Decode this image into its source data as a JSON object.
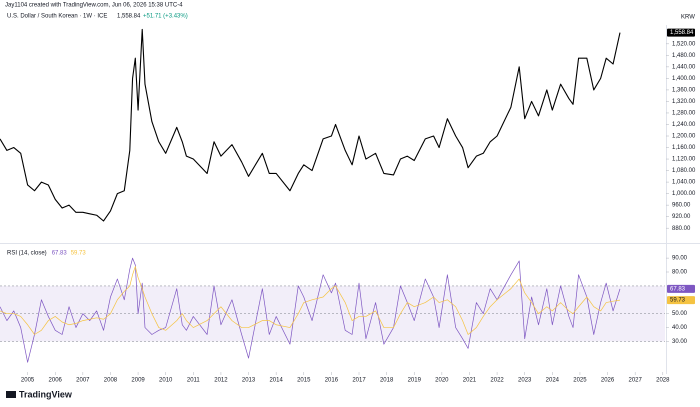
{
  "header": {
    "watermark": "Jay1104 created with TradingView.com, Jun 06, 2026 15:38 UTC-4",
    "symbol": "U.S. Dollar / South Korean · 1W · ICE",
    "last": "1,558.84",
    "change": "+51.71 (+3.43%)",
    "currency": "KRW",
    "brand": "TradingView"
  },
  "chart_data": [
    {
      "type": "line",
      "last_label": "1,558.84",
      "x": [
        2004.0,
        2004.25,
        2004.5,
        2004.75,
        2005.0,
        2005.25,
        2005.5,
        2005.75,
        2006.0,
        2006.25,
        2006.5,
        2006.75,
        2007.0,
        2007.25,
        2007.5,
        2007.75,
        2008.0,
        2008.25,
        2008.5,
        2008.7,
        2008.8,
        2008.9,
        2009.0,
        2009.15,
        2009.25,
        2009.5,
        2009.75,
        2010.0,
        2010.4,
        2010.6,
        2010.75,
        2011.0,
        2011.5,
        2011.75,
        2012.0,
        2012.4,
        2012.75,
        2013.0,
        2013.5,
        2013.75,
        2014.0,
        2014.5,
        2014.8,
        2015.0,
        2015.3,
        2015.7,
        2016.0,
        2016.15,
        2016.5,
        2016.75,
        2017.0,
        2017.25,
        2017.6,
        2017.9,
        2018.25,
        2018.5,
        2018.75,
        2019.0,
        2019.4,
        2019.7,
        2019.9,
        2020.2,
        2020.5,
        2020.75,
        2020.95,
        2021.25,
        2021.5,
        2021.75,
        2022.0,
        2022.5,
        2022.8,
        2023.0,
        2023.25,
        2023.5,
        2023.8,
        2024.0,
        2024.3,
        2024.6,
        2024.75,
        2024.95,
        2025.25,
        2025.5,
        2025.75,
        2025.95,
        2026.2,
        2026.45
      ],
      "series": [
        {
          "name": "U.S. Dollar / South Korean",
          "color": "#000000",
          "values": [
            1190,
            1150,
            1160,
            1140,
            1030,
            1010,
            1040,
            1030,
            980,
            950,
            960,
            935,
            935,
            930,
            925,
            905,
            940,
            1000,
            1010,
            1150,
            1400,
            1470,
            1290,
            1570,
            1380,
            1250,
            1180,
            1140,
            1230,
            1180,
            1130,
            1120,
            1070,
            1180,
            1130,
            1170,
            1110,
            1060,
            1140,
            1070,
            1070,
            1010,
            1070,
            1100,
            1080,
            1190,
            1200,
            1240,
            1150,
            1100,
            1200,
            1120,
            1140,
            1070,
            1065,
            1120,
            1130,
            1115,
            1190,
            1200,
            1160,
            1260,
            1200,
            1160,
            1090,
            1130,
            1140,
            1180,
            1200,
            1300,
            1440,
            1260,
            1320,
            1270,
            1360,
            1290,
            1380,
            1330,
            1310,
            1470,
            1470,
            1360,
            1400,
            1470,
            1450,
            1558.84
          ]
        }
      ],
      "xlim": [
        2004,
        2028.08
      ],
      "xticks": [
        2005,
        2006,
        2007,
        2008,
        2009,
        2010,
        2011,
        2012,
        2013,
        2014,
        2015,
        2016,
        2017,
        2018,
        2019,
        2020,
        2021,
        2022,
        2023,
        2024,
        2025,
        2026,
        2027,
        2028
      ],
      "ylim": [
        839,
        1568
      ],
      "yticks": [
        {
          "value": 880,
          "label": "880.00"
        },
        {
          "value": 920,
          "label": "920.00"
        },
        {
          "value": 960,
          "label": "960.00"
        },
        {
          "value": 1000,
          "label": "1,000.00"
        },
        {
          "value": 1040,
          "label": "1,040.00"
        },
        {
          "value": 1080,
          "label": "1,080.00"
        },
        {
          "value": 1120,
          "label": "1,120.00"
        },
        {
          "value": 1160,
          "label": "1,160.00"
        },
        {
          "value": 1200,
          "label": "1,200.00"
        },
        {
          "value": 1240,
          "label": "1,240.00"
        },
        {
          "value": 1280,
          "label": "1,280.00"
        },
        {
          "value": 1320,
          "label": "1,320.00"
        },
        {
          "value": 1360,
          "label": "1,360.00"
        },
        {
          "value": 1400,
          "label": "1,400.00"
        },
        {
          "value": 1440,
          "label": "1,440.00"
        },
        {
          "value": 1480,
          "label": "1,480.00"
        },
        {
          "value": 1520,
          "label": "1,520.00"
        }
      ]
    },
    {
      "type": "line",
      "title": "RSI (14, close)",
      "band": [
        30,
        70
      ],
      "midline": 50,
      "x": [
        2004.0,
        2004.25,
        2004.5,
        2004.75,
        2005.0,
        2005.25,
        2005.5,
        2005.75,
        2006.0,
        2006.25,
        2006.5,
        2006.75,
        2007.0,
        2007.25,
        2007.5,
        2007.75,
        2008.0,
        2008.25,
        2008.5,
        2008.7,
        2008.8,
        2008.9,
        2009.0,
        2009.15,
        2009.25,
        2009.5,
        2009.75,
        2010.0,
        2010.4,
        2010.6,
        2010.75,
        2011.0,
        2011.5,
        2011.75,
        2012.0,
        2012.4,
        2012.75,
        2013.0,
        2013.5,
        2013.75,
        2014.0,
        2014.5,
        2014.8,
        2015.0,
        2015.3,
        2015.7,
        2016.0,
        2016.15,
        2016.5,
        2016.75,
        2017.0,
        2017.25,
        2017.6,
        2017.9,
        2018.25,
        2018.5,
        2018.75,
        2019.0,
        2019.4,
        2019.7,
        2019.9,
        2020.2,
        2020.5,
        2020.75,
        2020.95,
        2021.25,
        2021.5,
        2021.75,
        2022.0,
        2022.5,
        2022.8,
        2023.0,
        2023.25,
        2023.5,
        2023.8,
        2024.0,
        2024.3,
        2024.6,
        2024.75,
        2024.95,
        2025.25,
        2025.5,
        2025.75,
        2025.95,
        2026.2,
        2026.45
      ],
      "series": [
        {
          "color": "#7e57c2",
          "values": [
            55,
            45,
            52,
            40,
            15,
            35,
            60,
            48,
            38,
            35,
            55,
            40,
            50,
            45,
            52,
            38,
            62,
            75,
            60,
            82,
            90,
            85,
            50,
            72,
            40,
            35,
            38,
            40,
            68,
            42,
            38,
            48,
            35,
            70,
            42,
            60,
            35,
            18,
            68,
            35,
            48,
            28,
            70,
            62,
            45,
            78,
            65,
            72,
            38,
            35,
            72,
            32,
            58,
            28,
            40,
            70,
            58,
            45,
            75,
            62,
            40,
            78,
            40,
            32,
            25,
            58,
            50,
            68,
            60,
            78,
            88,
            32,
            62,
            42,
            68,
            42,
            70,
            48,
            40,
            78,
            62,
            35,
            58,
            72,
            52,
            67.83
          ]
        },
        {
          "color": "#f5c342",
          "values": [
            52,
            50,
            50,
            48,
            42,
            35,
            38,
            45,
            48,
            44,
            42,
            43,
            45,
            46,
            47,
            46,
            50,
            60,
            66,
            70,
            78,
            84,
            76,
            68,
            62,
            50,
            40,
            38,
            45,
            50,
            45,
            40,
            45,
            50,
            55,
            45,
            40,
            40,
            45,
            45,
            42,
            40,
            50,
            58,
            60,
            62,
            68,
            70,
            58,
            45,
            48,
            48,
            52,
            40,
            40,
            50,
            58,
            55,
            58,
            62,
            58,
            60,
            55,
            45,
            35,
            40,
            48,
            55,
            60,
            68,
            75,
            65,
            58,
            50,
            55,
            52,
            58,
            52,
            50,
            55,
            62,
            55,
            52,
            58,
            59,
            59.73
          ]
        }
      ],
      "xlim": [
        2004,
        2028.08
      ],
      "ylim": [
        8,
        98
      ],
      "yticks": [
        {
          "value": 30,
          "label": "30.00"
        },
        {
          "value": 40,
          "label": "40.00"
        },
        {
          "value": 50,
          "label": "50.00"
        },
        {
          "value": 80,
          "label": "80.00"
        },
        {
          "value": 90,
          "label": "90.00"
        }
      ]
    }
  ]
}
